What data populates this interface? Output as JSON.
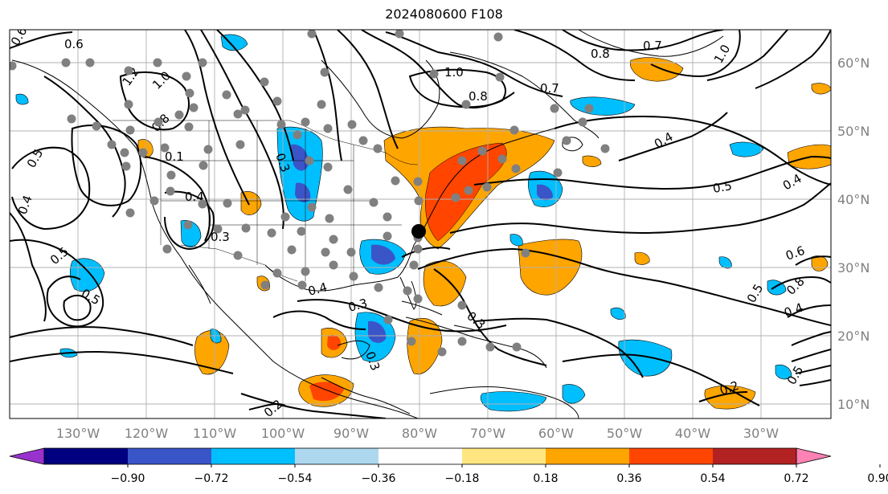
{
  "title": "2024080600 F108",
  "map": {
    "lon_ticks": [
      "130°W",
      "120°W",
      "110°W",
      "100°W",
      "90°W",
      "80°W",
      "70°W",
      "60°W",
      "50°W",
      "40°W",
      "30°W"
    ],
    "lat_ticks": [
      "60°N",
      "50°N",
      "40°N",
      "30°N",
      "20°N",
      "10°N"
    ],
    "contour_labels": [
      "0.6",
      "0.6",
      "1.2",
      "1.0",
      "0.8",
      "0.5",
      "0.4",
      "0.1",
      "0.4",
      "0.3",
      "0.3",
      "0.5",
      "0.5",
      "1.0",
      "0.8",
      "0.7",
      "0.8",
      "0.7",
      "1.0",
      "0.4",
      "0.5",
      "0.4",
      "0.6",
      "0.5",
      "0.8",
      "0.4",
      "0.3",
      "0.4",
      "0.3",
      "0.3",
      "0.2",
      "0.2",
      "0.5"
    ],
    "station_color": "#808080"
  },
  "colorbar": {
    "colors": [
      "#9932cc",
      "#000080",
      "#3a55c8",
      "#00bfff",
      "#add8f0",
      "#ffffff",
      "#ffe680",
      "#ffa500",
      "#ff4500",
      "#b22222",
      "#ff82b4"
    ],
    "labels": [
      "−0.90",
      "−0.72",
      "−0.54",
      "−0.36",
      "−0.18",
      "0.18",
      "0.36",
      "0.54",
      "0.72",
      "0.90"
    ]
  }
}
